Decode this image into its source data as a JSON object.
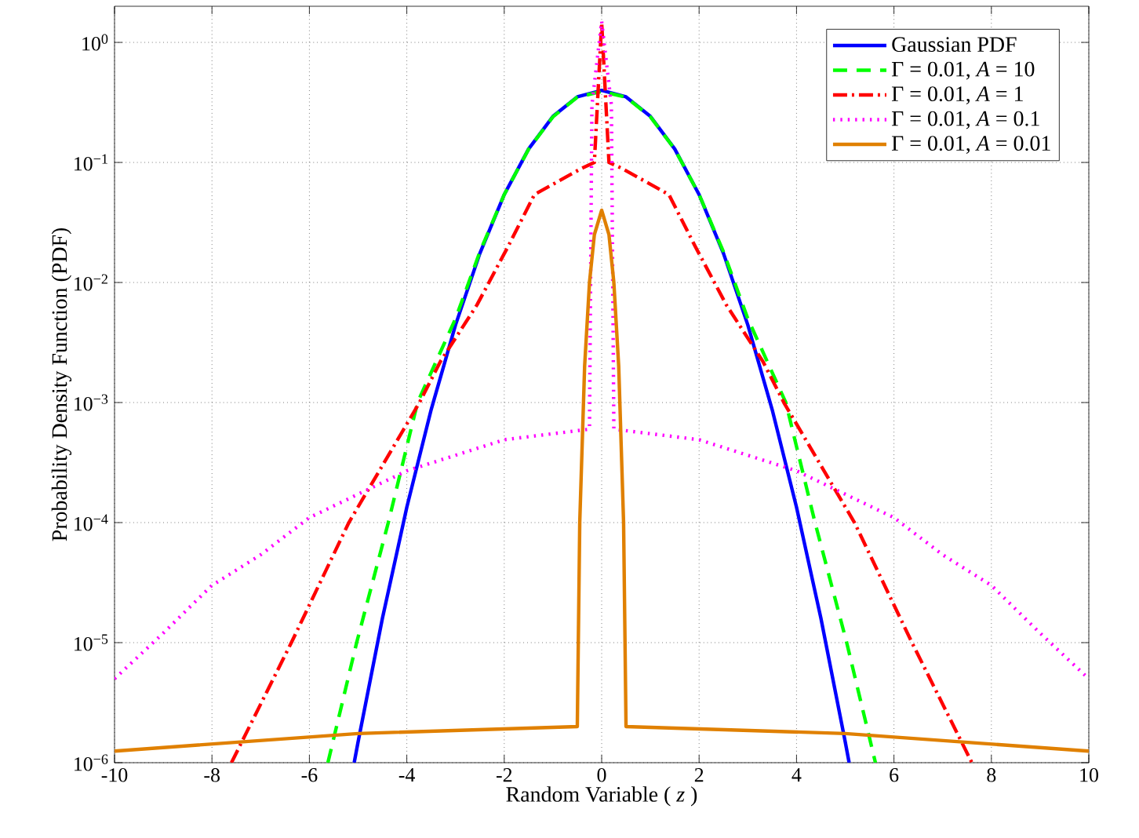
{
  "chart_data": {
    "type": "line",
    "xlabel": "Random Variable ( *z* )",
    "ylabel": "Probability Density Function (PDF)",
    "log": "y",
    "grid": true,
    "legend": "top right",
    "xlim": [
      -10,
      10
    ],
    "xticks": [
      -10,
      -8,
      -6,
      -4,
      -2,
      0,
      2,
      4,
      6,
      8,
      10
    ],
    "ylim": [
      1e-06,
      2
    ],
    "yticks": [
      {
        "value": 1e-06,
        "label": "10$^{−6}$"
      },
      {
        "value": 1e-05,
        "label": "10$^{−5}$"
      },
      {
        "value": 0.0001,
        "label": "10$^{−4}$"
      },
      {
        "value": 0.001,
        "label": "10$^{−3}$"
      },
      {
        "value": 0.01,
        "label": "10$^{−2}$"
      },
      {
        "value": 0.1,
        "label": "10$^{−1}$"
      },
      {
        "value": 1,
        "label": "10$^{0}$"
      }
    ],
    "series": [
      {
        "name": "Gaussian PDF",
        "color": "#0000ff",
        "line_style": "solid",
        "x": [
          -5.08,
          -5,
          -4.5,
          -4,
          -3.5,
          -3,
          -2.5,
          -2,
          -1.5,
          -1,
          -0.5,
          0,
          0.5,
          1,
          1.5,
          2,
          2.5,
          3,
          3.5,
          4,
          4.5,
          5,
          5.08
        ],
        "values": [
          1e-06,
          1.49e-06,
          1.6e-05,
          0.000134,
          0.000873,
          0.00443,
          0.0175,
          0.054,
          0.1295,
          0.242,
          0.352,
          0.399,
          0.352,
          0.242,
          0.1295,
          0.054,
          0.0175,
          0.00443,
          0.000873,
          0.000134,
          1.6e-05,
          1.49e-06,
          1e-06
        ]
      },
      {
        "name": "Γ = 0.01, *A* = 10",
        "color": "#00ff00",
        "line_style": "dashed",
        "x": [
          -5.62,
          -5.03,
          -4.38,
          -3.78,
          -3,
          -2.5,
          -2,
          -1.5,
          -1,
          -0.5,
          0,
          0.5,
          1,
          1.5,
          2,
          2.5,
          3,
          3.78,
          4.38,
          5.03,
          5.62
        ],
        "values": [
          1e-06,
          1e-05,
          0.0001,
          0.001,
          0.005,
          0.018,
          0.054,
          0.129,
          0.24,
          0.35,
          0.39,
          0.35,
          0.24,
          0.129,
          0.054,
          0.018,
          0.005,
          0.001,
          0.0001,
          1e-05,
          1e-06
        ]
      },
      {
        "name": "Γ = 0.01, *A* = 1",
        "color": "#ff0000",
        "line_style": "dashdot",
        "x": [
          -7.6,
          -6.37,
          -5.19,
          -3.74,
          -3.31,
          -2.56,
          -1.92,
          -1.38,
          -0.42,
          -0.15,
          0,
          0.15,
          0.42,
          1.38,
          1.92,
          2.56,
          3.31,
          3.74,
          5.19,
          6.37,
          7.6
        ],
        "values": [
          1e-06,
          1e-05,
          0.0001,
          0.001,
          0.0022,
          0.0065,
          0.02,
          0.054,
          0.089,
          0.1,
          1.46,
          0.1,
          0.089,
          0.054,
          0.02,
          0.0065,
          0.0022,
          0.001,
          0.0001,
          1e-05,
          1e-06
        ]
      },
      {
        "name": "Γ = 0.01, *A* = 0.1",
        "color": "#ff00ff",
        "line_style": "dotted",
        "x": [
          -10,
          -9,
          -8,
          -7,
          -6,
          -4,
          -2,
          -0.25,
          -0.2,
          0,
          0.2,
          0.25,
          2,
          4,
          6,
          7,
          8,
          9,
          10
        ],
        "values": [
          5e-06,
          1.2e-05,
          3e-05,
          5.4e-05,
          0.00011,
          0.00027,
          0.00049,
          0.0006,
          0.3,
          1.5,
          0.3,
          0.0006,
          0.00049,
          0.00027,
          0.00011,
          5.4e-05,
          3e-05,
          1.2e-05,
          5e-06
        ]
      },
      {
        "name": "Γ = 0.01, *A* = 0.01",
        "color": "#e08000",
        "line_style": "solid",
        "x": [
          -10,
          -5,
          -0.5,
          -0.45,
          -0.35,
          -0.25,
          -0.15,
          0,
          0.15,
          0.25,
          0.35,
          0.45,
          0.5,
          5,
          10
        ],
        "values": [
          1.25e-06,
          1.75e-06,
          2e-06,
          0.0001,
          0.002,
          0.01,
          0.025,
          0.04,
          0.025,
          0.01,
          0.002,
          0.0001,
          2e-06,
          1.75e-06,
          1.25e-06
        ]
      }
    ]
  }
}
